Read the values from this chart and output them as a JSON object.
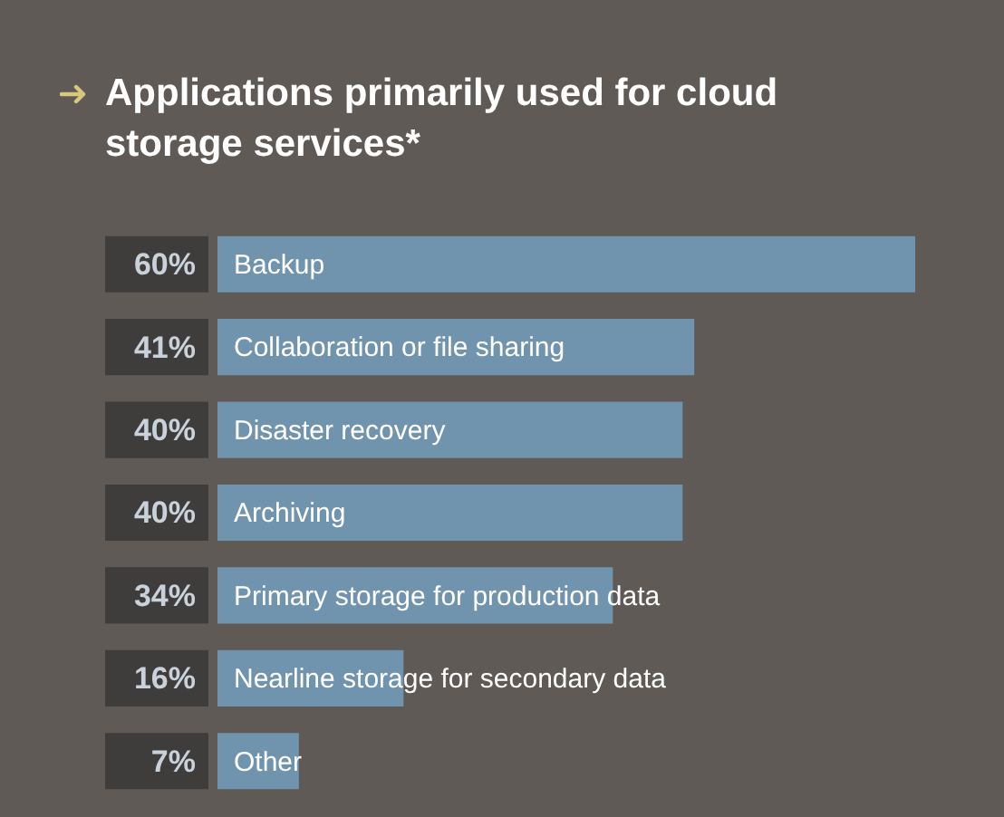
{
  "chart_data": {
    "type": "bar",
    "orientation": "horizontal",
    "title": "Applications primarily used for cloud storage services*",
    "categories": [
      "Backup",
      "Collaboration or file sharing",
      "Disaster recovery",
      "Archiving",
      "Primary storage for production data",
      "Nearline storage for secondary data",
      "Other"
    ],
    "values": [
      60,
      41,
      40,
      40,
      34,
      16,
      7
    ],
    "value_labels": [
      "60%",
      "41%",
      "40%",
      "40%",
      "34%",
      "16%",
      "7%"
    ],
    "color": "#7194ae"
  }
}
